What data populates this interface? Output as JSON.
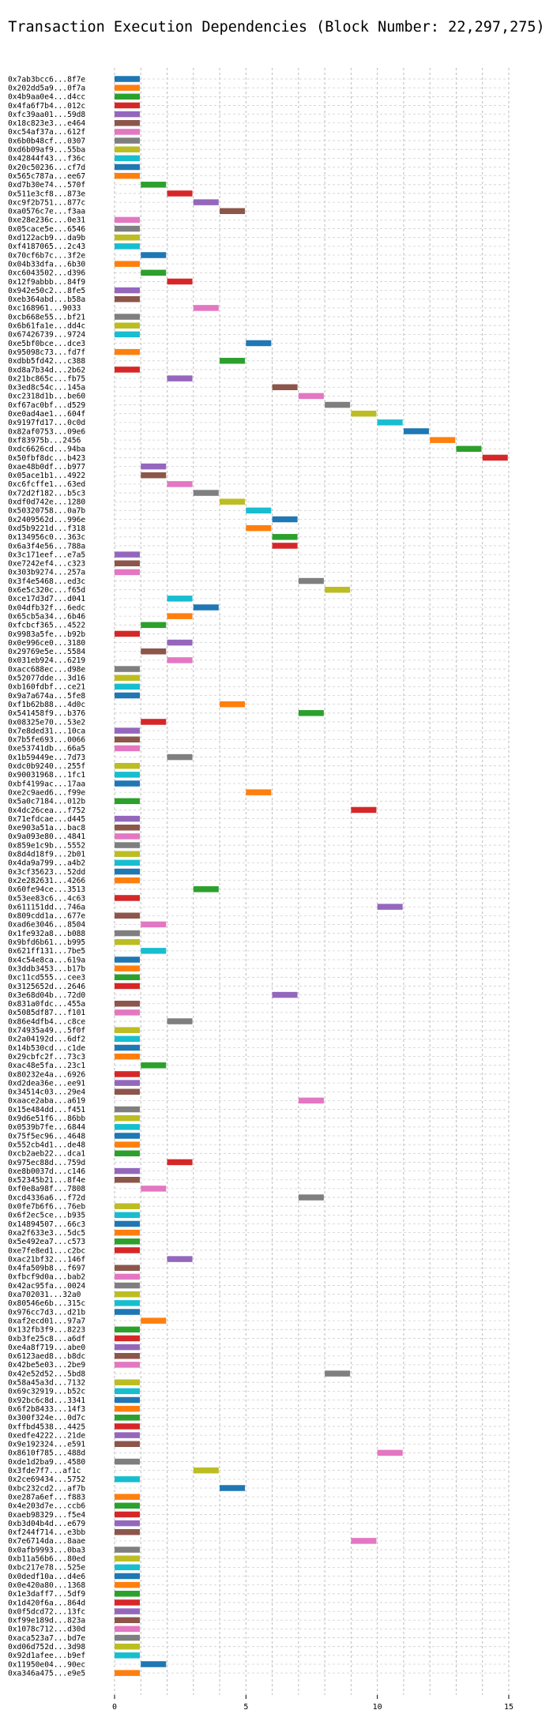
{
  "chart_data": {
    "type": "bar",
    "orientation": "horizontal-gantt",
    "title": "Transaction Execution Dependencies (Block Number: 22,297,275)",
    "xlabel": "",
    "ylabel": "",
    "xlim": [
      0,
      15
    ],
    "xticks": [
      0,
      5,
      10,
      15
    ],
    "grid": true,
    "legend": "none",
    "palette": [
      "#1f77b4",
      "#ff7f0e",
      "#2ca02c",
      "#d62728",
      "#9467bd",
      "#8c564b",
      "#e377c2",
      "#7f7f7f",
      "#bcbd22",
      "#17becf"
    ],
    "transactions": [
      {
        "label": "0x7ab3bcc6...8f7e",
        "start": 0
      },
      {
        "label": "0x202dd5a9...0f7a",
        "start": 0
      },
      {
        "label": "0x4b9aa0e4...d4cc",
        "start": 0
      },
      {
        "label": "0x4fa6f7b4...012c",
        "start": 0
      },
      {
        "label": "0xfc39aa01...59d8",
        "start": 0
      },
      {
        "label": "0x18c823e3...e464",
        "start": 0
      },
      {
        "label": "0xc54af37a...612f",
        "start": 0
      },
      {
        "label": "0x6b0b48cf...0307",
        "start": 0
      },
      {
        "label": "0xd6b09af9...55ba",
        "start": 0
      },
      {
        "label": "0x42844f43...f36c",
        "start": 0
      },
      {
        "label": "0x20c50236...cf7d",
        "start": 0
      },
      {
        "label": "0x565c787a...ee67",
        "start": 0
      },
      {
        "label": "0xd7b30e74...570f",
        "start": 1
      },
      {
        "label": "0x511e3cf8...873e",
        "start": 2
      },
      {
        "label": "0xc9f2b751...877c",
        "start": 3
      },
      {
        "label": "0xa0576c7e...f3aa",
        "start": 4
      },
      {
        "label": "0xe28e236c...0e31",
        "start": 0
      },
      {
        "label": "0x05cace5e...6546",
        "start": 0
      },
      {
        "label": "0xd122acb9...da9b",
        "start": 0
      },
      {
        "label": "0xf4187065...2c43",
        "start": 0
      },
      {
        "label": "0x70cf6b7c...3f2e",
        "start": 1
      },
      {
        "label": "0x04b33dfa...6b30",
        "start": 0
      },
      {
        "label": "0xc6043502...d396",
        "start": 1
      },
      {
        "label": "0x12f9abbb...84f9",
        "start": 2
      },
      {
        "label": "0x942e50c2...8fe5",
        "start": 0
      },
      {
        "label": "0xeb364abd...b58a",
        "start": 0
      },
      {
        "label": "0xc168961...9033",
        "start": 3
      },
      {
        "label": "0xcb668e55...bf21",
        "start": 0
      },
      {
        "label": "0x6b61fa1e...dd4c",
        "start": 0
      },
      {
        "label": "0x67426739...9724",
        "start": 0
      },
      {
        "label": "0xe5bf0bce...dce3",
        "start": 5
      },
      {
        "label": "0x95098c73...fd7f",
        "start": 0
      },
      {
        "label": "0xdbb5fd42...c388",
        "start": 4
      },
      {
        "label": "0xd8a7b34d...2b62",
        "start": 0
      },
      {
        "label": "0x21bc865c...fb75",
        "start": 2
      },
      {
        "label": "0x3ed8c54c...145a",
        "start": 6
      },
      {
        "label": "0xc2318d1b...be60",
        "start": 7
      },
      {
        "label": "0xf67ac0bf...d529",
        "start": 8
      },
      {
        "label": "0xe0ad4ae1...604f",
        "start": 9
      },
      {
        "label": "0x9197fd17...0c0d",
        "start": 10
      },
      {
        "label": "0x82af0753...09e6",
        "start": 11
      },
      {
        "label": "0xf83975b...2456",
        "start": 12
      },
      {
        "label": "0xdc6626cd...94ba",
        "start": 13
      },
      {
        "label": "0x50fbf8dc...b423",
        "start": 14
      },
      {
        "label": "0xae48b0df...b977",
        "start": 1
      },
      {
        "label": "0x05ace1b1...4922",
        "start": 1
      },
      {
        "label": "0xc6fcffe1...63ed",
        "start": 2
      },
      {
        "label": "0x72d2f182...b5c3",
        "start": 3
      },
      {
        "label": "0xdf0d742e...1280",
        "start": 4
      },
      {
        "label": "0x50320758...0a7b",
        "start": 5
      },
      {
        "label": "0x2409562d...996e",
        "start": 6
      },
      {
        "label": "0xd5b9221d...f318",
        "start": 5
      },
      {
        "label": "0x134956c0...363c",
        "start": 6
      },
      {
        "label": "0x6a3f4e56...788a",
        "start": 6
      },
      {
        "label": "0x3c171eef...e7a5",
        "start": 0
      },
      {
        "label": "0xe7242ef4...c323",
        "start": 0
      },
      {
        "label": "0x303b9274...257a",
        "start": 0
      },
      {
        "label": "0x3f4e5468...ed3c",
        "start": 7
      },
      {
        "label": "0x6e5c320c...f65d",
        "start": 8
      },
      {
        "label": "0xce17d3d7...d041",
        "start": 2
      },
      {
        "label": "0x04dfb32f...6edc",
        "start": 3
      },
      {
        "label": "0x65cb5a34...6b46",
        "start": 2
      },
      {
        "label": "0xfcbcf365...4522",
        "start": 1
      },
      {
        "label": "0x9983a5fe...b92b",
        "start": 0
      },
      {
        "label": "0x0e996ce0...3180",
        "start": 2
      },
      {
        "label": "0x29769e5e...5584",
        "start": 1
      },
      {
        "label": "0x031eb924...6219",
        "start": 2
      },
      {
        "label": "0xacc688ec...d98e",
        "start": 0
      },
      {
        "label": "0x52077dde...3d16",
        "start": 0
      },
      {
        "label": "0xb160fdbf...ce21",
        "start": 0
      },
      {
        "label": "0x9a7a674a...5fe8",
        "start": 0
      },
      {
        "label": "0xf1b62b88...4d0c",
        "start": 4
      },
      {
        "label": "0x541458f9...b376",
        "start": 7
      },
      {
        "label": "0x08325e70...53e2",
        "start": 1
      },
      {
        "label": "0x7e8ded31...10ca",
        "start": 0
      },
      {
        "label": "0x7b5fe693...0066",
        "start": 0
      },
      {
        "label": "0xe53741db...66a5",
        "start": 0
      },
      {
        "label": "0x1b59449e...7d73",
        "start": 2
      },
      {
        "label": "0xdc0b9240...255f",
        "start": 0
      },
      {
        "label": "0x90031968...1fc1",
        "start": 0
      },
      {
        "label": "0xbf4199ac...17aa",
        "start": 0
      },
      {
        "label": "0xe2c9aed6...f99e",
        "start": 5
      },
      {
        "label": "0x5a0c7184...012b",
        "start": 0
      },
      {
        "label": "0x4dc26cea...f752",
        "start": 9
      },
      {
        "label": "0x71efdcae...d445",
        "start": 0
      },
      {
        "label": "0xe903a51a...bac8",
        "start": 0
      },
      {
        "label": "0x9a093e80...4841",
        "start": 0
      },
      {
        "label": "0x859e1c9b...5552",
        "start": 0
      },
      {
        "label": "0x8d4d18f9...2b01",
        "start": 0
      },
      {
        "label": "0x4da9a799...a4b2",
        "start": 0
      },
      {
        "label": "0x3cf35623...52dd",
        "start": 0
      },
      {
        "label": "0x2e282631...4266",
        "start": 0
      },
      {
        "label": "0x60fe94ce...3513",
        "start": 3
      },
      {
        "label": "0x53ee83c6...4c63",
        "start": 0
      },
      {
        "label": "0x611151dd...746a",
        "start": 10
      },
      {
        "label": "0x809cdd1a...677e",
        "start": 0
      },
      {
        "label": "0xad6e3046...8504",
        "start": 1
      },
      {
        "label": "0x1fe932a8...b088",
        "start": 0
      },
      {
        "label": "0x9bfd6b61...b995",
        "start": 0
      },
      {
        "label": "0x621ff131...7be5",
        "start": 1
      },
      {
        "label": "0x4c54e8ca...619a",
        "start": 0
      },
      {
        "label": "0x3ddb3453...b17b",
        "start": 0
      },
      {
        "label": "0xc11cd555...cee3",
        "start": 0
      },
      {
        "label": "0x3125652d...2646",
        "start": 0
      },
      {
        "label": "0x3e68d04b...72d0",
        "start": 6
      },
      {
        "label": "0x831a0fdc...455a",
        "start": 0
      },
      {
        "label": "0x5085df87...f101",
        "start": 0
      },
      {
        "label": "0x86e4dfb4...c8ce",
        "start": 2
      },
      {
        "label": "0x74935a49...5f0f",
        "start": 0
      },
      {
        "label": "0x2a04192d...6df2",
        "start": 0
      },
      {
        "label": "0x14b530cd...c1de",
        "start": 0
      },
      {
        "label": "0x29cbfc2f...73c3",
        "start": 0
      },
      {
        "label": "0xac48e5fa...23c1",
        "start": 1
      },
      {
        "label": "0x80232e4a...6926",
        "start": 0
      },
      {
        "label": "0xd2dea36e...ee91",
        "start": 0
      },
      {
        "label": "0x34514c03...29e4",
        "start": 0
      },
      {
        "label": "0xaace2aba...a619",
        "start": 7
      },
      {
        "label": "0x15e484dd...f451",
        "start": 0
      },
      {
        "label": "0x9d6e51f6...86bb",
        "start": 0
      },
      {
        "label": "0x0539b7fe...6844",
        "start": 0
      },
      {
        "label": "0x75f5ec96...4648",
        "start": 0
      },
      {
        "label": "0x552cb4d1...de48",
        "start": 0
      },
      {
        "label": "0xcb2aeb22...dca1",
        "start": 0
      },
      {
        "label": "0x975ec88d...759d",
        "start": 2
      },
      {
        "label": "0xe8b0037d...c146",
        "start": 0
      },
      {
        "label": "0x52345b21...8f4e",
        "start": 0
      },
      {
        "label": "0xf0e8a98f...7808",
        "start": 1
      },
      {
        "label": "0xcd4336a6...f72d",
        "start": 7
      },
      {
        "label": "0x0fe7b6f6...76eb",
        "start": 0
      },
      {
        "label": "0x6f2ec5ce...b935",
        "start": 0
      },
      {
        "label": "0x14894507...66c3",
        "start": 0
      },
      {
        "label": "0xa2f633e3...5dc5",
        "start": 0
      },
      {
        "label": "0x5e492ea7...c573",
        "start": 0
      },
      {
        "label": "0xe7fe8ed1...c2bc",
        "start": 0
      },
      {
        "label": "0xac21bf32...146f",
        "start": 2
      },
      {
        "label": "0x4fa509b8...f697",
        "start": 0
      },
      {
        "label": "0xfbcf9d0a...bab2",
        "start": 0
      },
      {
        "label": "0x42ac95fa...0024",
        "start": 0
      },
      {
        "label": "0xa702031...32a0",
        "start": 0
      },
      {
        "label": "0x80546e6b...315c",
        "start": 0
      },
      {
        "label": "0x976cc7d3...d21b",
        "start": 0
      },
      {
        "label": "0xaf2ecd01...97a7",
        "start": 1
      },
      {
        "label": "0x132fb3f9...8223",
        "start": 0
      },
      {
        "label": "0xb3fe25c8...a6df",
        "start": 0
      },
      {
        "label": "0xe4a8f719...abe0",
        "start": 0
      },
      {
        "label": "0x6123aed8...b8dc",
        "start": 0
      },
      {
        "label": "0x42be5e03...2be9",
        "start": 0
      },
      {
        "label": "0x42e52d52...5bd8",
        "start": 8
      },
      {
        "label": "0x58a45a3d...7132",
        "start": 0
      },
      {
        "label": "0x69c32919...b52c",
        "start": 0
      },
      {
        "label": "0x92bc6c8d...3341",
        "start": 0
      },
      {
        "label": "0x6f2b8433...14f3",
        "start": 0
      },
      {
        "label": "0x300f324e...0d7c",
        "start": 0
      },
      {
        "label": "0xffbd4538...4425",
        "start": 0
      },
      {
        "label": "0xedfe4222...21de",
        "start": 0
      },
      {
        "label": "0x9e192324...e591",
        "start": 0
      },
      {
        "label": "0x8610f785...488d",
        "start": 10
      },
      {
        "label": "0xde1d2ba9...4580",
        "start": 0
      },
      {
        "label": "0x3fde7f7...af1c",
        "start": 3
      },
      {
        "label": "0x2ce69434...5752",
        "start": 0
      },
      {
        "label": "0xbc232cd2...af7b",
        "start": 4
      },
      {
        "label": "0xe287a6ef...f883",
        "start": 0
      },
      {
        "label": "0x4e203d7e...ccb6",
        "start": 0
      },
      {
        "label": "0xaeb98329...f5e4",
        "start": 0
      },
      {
        "label": "0xb3d04b4d...e679",
        "start": 0
      },
      {
        "label": "0xf244f714...e3bb",
        "start": 0
      },
      {
        "label": "0x7e6714da...8aae",
        "start": 9
      },
      {
        "label": "0x0afb9993...0ba3",
        "start": 0
      },
      {
        "label": "0xb11a56b6...80ed",
        "start": 0
      },
      {
        "label": "0xbc217e78...525e",
        "start": 0
      },
      {
        "label": "0x0dedf10a...d4e6",
        "start": 0
      },
      {
        "label": "0x0e420a80...1368",
        "start": 0
      },
      {
        "label": "0x1e3daff7...5df9",
        "start": 0
      },
      {
        "label": "0x1d420f6a...864d",
        "start": 0
      },
      {
        "label": "0x0f5dcd72...13fc",
        "start": 0
      },
      {
        "label": "0xf99e189d...823a",
        "start": 0
      },
      {
        "label": "0x1078c712...d30d",
        "start": 0
      },
      {
        "label": "0xaca523a7...bd7e",
        "start": 0
      },
      {
        "label": "0xd06d752d...3d98",
        "start": 0
      },
      {
        "label": "0x92d1afee...b9ef",
        "start": 0
      },
      {
        "label": "0x11950e04...90ec",
        "start": 1
      },
      {
        "label": "0xa346a475...e9e5",
        "start": 0
      }
    ]
  }
}
